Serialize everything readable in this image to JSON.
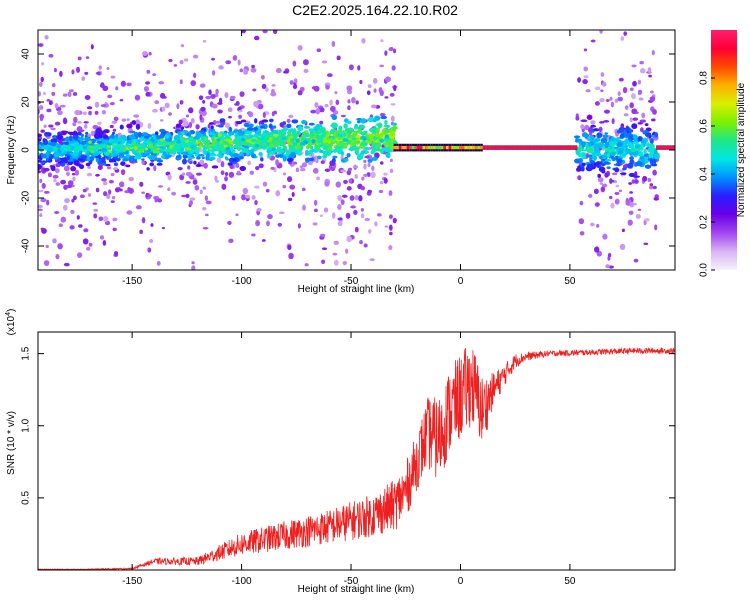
{
  "figure": {
    "title": "C2E2.2025.164.22.10.R02"
  },
  "chart_data": [
    {
      "type": "heatmap",
      "name": "spectrogram",
      "xlabel": "Height of straight line (km)",
      "ylabel": "Frequency (Hz)",
      "xlim": [
        -193,
        98
      ],
      "ylim": [
        -50,
        50
      ],
      "xticks": [
        -150,
        -100,
        -50,
        0,
        50
      ],
      "yticks": [
        -40,
        -20,
        0,
        20,
        40
      ],
      "colorbar": {
        "label": "Normalized spectral amplitude",
        "range": [
          0,
          1
        ],
        "ticks": [
          "0.0",
          "0.2",
          "0.4",
          "0.6",
          "0.8"
        ],
        "colors": [
          "#f6f0fb",
          "#d7b5f3",
          "#a347f0",
          "#6a00e8",
          "#2a1cff",
          "#0090ff",
          "#00e6e6",
          "#1ee68a",
          "#7cf000",
          "#d8f000",
          "#ffb000",
          "#ff4a00",
          "#ff0033",
          "#ff1e6e"
        ]
      },
      "features": [
        {
          "x_range": [
            -193,
            -30
          ],
          "band_half_width_hz": 8,
          "amplitude": 0.3,
          "note": "broadband noise rising toward -30 km"
        },
        {
          "x_range": [
            -30,
            53
          ],
          "freq_hz": 1,
          "amplitude": 0.95,
          "note": "narrow strong line near 1 Hz"
        },
        {
          "x_range": [
            53,
            90
          ],
          "band_half_width_hz": 10,
          "amplitude": 0.35,
          "note": "broadband patch"
        },
        {
          "x_range": [
            90,
            98
          ],
          "freq_hz": 1,
          "amplitude": 0.95
        }
      ]
    },
    {
      "type": "line",
      "name": "snr",
      "xlabel": "Height of straight line (km)",
      "ylabel": "SNR (10 * v/v)",
      "yscale_label": "(x10",
      "yscale_exp": "4",
      "xlim": [
        -193,
        98
      ],
      "ylim": [
        0,
        1.65
      ],
      "xticks": [
        -150,
        -100,
        -50,
        0,
        50
      ],
      "yticks": [
        0.5,
        1.0,
        1.5
      ],
      "color": "#ee2020",
      "envelope": {
        "x": [
          -193,
          -150,
          -140,
          -120,
          -100,
          -80,
          -60,
          -40,
          -30,
          -25,
          -20,
          -15,
          -10,
          -5,
          0,
          5,
          10,
          15,
          20,
          25,
          30,
          40,
          60,
          80,
          98
        ],
        "y": [
          0.0,
          0.01,
          0.06,
          0.06,
          0.18,
          0.24,
          0.3,
          0.38,
          0.45,
          0.55,
          0.75,
          0.95,
          0.9,
          1.1,
          1.2,
          1.3,
          1.1,
          1.25,
          1.35,
          1.45,
          1.48,
          1.5,
          1.51,
          1.52,
          1.52
        ],
        "noise": [
          0.0,
          0.005,
          0.02,
          0.03,
          0.08,
          0.1,
          0.12,
          0.15,
          0.18,
          0.2,
          0.2,
          0.25,
          0.3,
          0.3,
          0.3,
          0.3,
          0.25,
          0.12,
          0.08,
          0.05,
          0.03,
          0.02,
          0.02,
          0.02,
          0.02
        ]
      }
    }
  ]
}
